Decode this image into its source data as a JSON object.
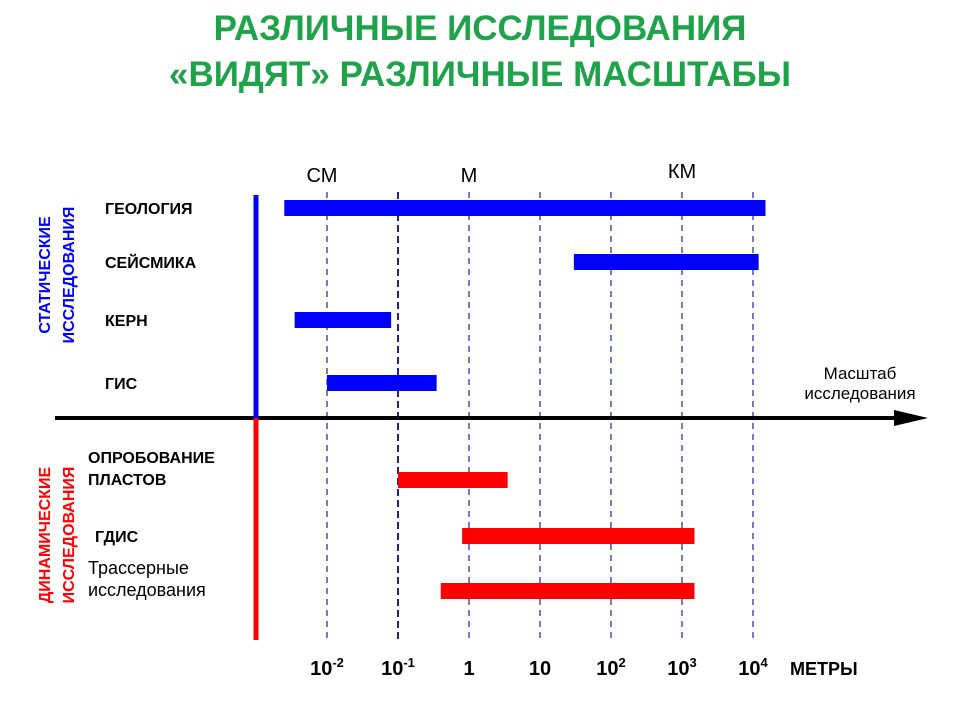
{
  "title_line1": "РАЗЛИЧНЫЕ ИССЛЕДОВАНИЯ",
  "title_line2": "«ВИДЯТ» РАЗЛИЧНЫЕ МАСШТАБЫ",
  "colors": {
    "title": "#1fa34a",
    "static": "#0000ff",
    "dynamic": "#ff0000",
    "gridline": "#2020a0"
  },
  "chart_data": {
    "type": "bar",
    "orientation": "horizontal-range",
    "xscale": "log10",
    "xunit": "МЕТРЫ",
    "xlim": [
      0.002,
      20000
    ],
    "xticks": [
      {
        "value": 0.01,
        "base": "10",
        "exp": "-2"
      },
      {
        "value": 0.1,
        "base": "10",
        "exp": "-1"
      },
      {
        "value": 1,
        "base": "1",
        "exp": ""
      },
      {
        "value": 10,
        "base": "10",
        "exp": ""
      },
      {
        "value": 100,
        "base": "10",
        "exp": "2"
      },
      {
        "value": 1000,
        "base": "10",
        "exp": "3"
      },
      {
        "value": 10000,
        "base": "10",
        "exp": "4"
      }
    ],
    "unit_marks": [
      {
        "label": "СМ",
        "value": 0.01
      },
      {
        "label": "М",
        "value": 1
      },
      {
        "label": "КМ",
        "value": 1000
      }
    ],
    "axis_label": [
      "Масштаб",
      "исследования"
    ],
    "groups": [
      {
        "label": [
          "СТАТИЧЕСКИЕ",
          "ИССЛЕДОВАНИЯ"
        ],
        "color": "#0000ff"
      },
      {
        "label": [
          "ДИНАМИЧЕСКИЕ",
          "ИССЛЕДОВАНИЯ"
        ],
        "color": "#ff0000"
      }
    ],
    "series": [
      {
        "name": [
          "ГЕОЛОГИЯ"
        ],
        "group": 0,
        "from": 0.0025,
        "to": 15000
      },
      {
        "name": [
          "СЕЙСМИКА"
        ],
        "group": 0,
        "from": 30,
        "to": 12000
      },
      {
        "name": [
          "КЕРН"
        ],
        "group": 0,
        "from": 0.0035,
        "to": 0.08
      },
      {
        "name": [
          "ГИС"
        ],
        "group": 0,
        "from": 0.01,
        "to": 0.35
      },
      {
        "name": [
          "ОПРОБОВАНИЕ",
          "ПЛАСТОВ"
        ],
        "group": 1,
        "from": 0.1,
        "to": 3.5
      },
      {
        "name": [
          "ГДИС"
        ],
        "group": 1,
        "from": 0.8,
        "to": 1500
      },
      {
        "name": [
          "Трассерные",
          "исследования"
        ],
        "group": 1,
        "from": 0.4,
        "to": 1500
      }
    ]
  }
}
